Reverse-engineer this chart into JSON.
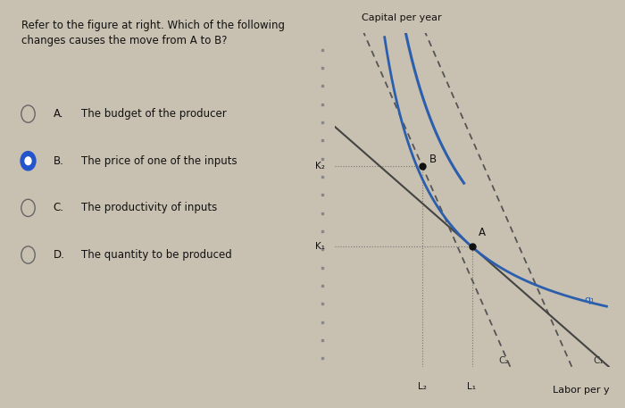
{
  "bg_color": "#c8c0b0",
  "left_panel_bg": "#c8c0b0",
  "right_panel_bg": "#c8c0b0",
  "title": "Refer to the figure at right. Which of the following\nchanges causes the move from A to B?",
  "title_fontsize": 8.5,
  "options": [
    {
      "label": "A.",
      "text": "The budget of the producer",
      "selected": false
    },
    {
      "label": "B.",
      "text": "The price of one of the inputs",
      "selected": true
    },
    {
      "label": "C.",
      "text": "The productivity of inputs",
      "selected": false
    },
    {
      "label": "D.",
      "text": "The quantity to be produced",
      "selected": false
    }
  ],
  "option_fontsize": 8.5,
  "xlabel": "Labor per y",
  "ylabel": "Capital per year",
  "axis_fontsize": 8,
  "K1_val": 0.36,
  "K2_val": 0.6,
  "L2_val": 0.32,
  "L1_val": 0.5,
  "point_A": [
    0.5,
    0.36
  ],
  "point_B": [
    0.32,
    0.6
  ],
  "isoquant_color": "#2b5fad",
  "line_color": "#444444",
  "dashed_color": "#555555",
  "dotted_color": "#777777",
  "q1_label": "q₁",
  "C1_label": "C₁",
  "C2_label": "C₂",
  "K1_label": "K₁",
  "K2_label": "K₂",
  "L1_label": "L₁",
  "L2_label": "L₂"
}
